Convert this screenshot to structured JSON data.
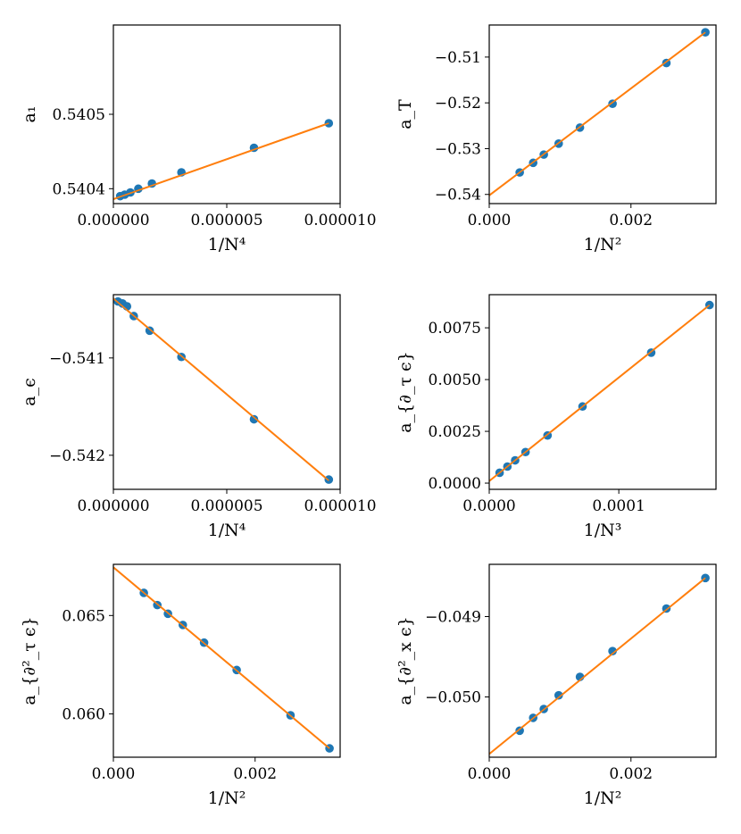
{
  "colors": {
    "points": "#1f77b4",
    "fit_line": "#ff7f0e",
    "axes": "#000000",
    "background": "#ffffff"
  },
  "chart_data": [
    {
      "type": "scatter",
      "xlabel": "1/N⁴",
      "ylabel": "a₁",
      "xlim": [
        0,
        1e-05
      ],
      "ylim": [
        0.54038,
        0.54062
      ],
      "xticks": [
        0,
        5e-06,
        1e-05
      ],
      "xtick_labels": [
        "0.000000",
        "0.000005",
        "0.000010"
      ],
      "yticks": [
        0.5404,
        0.5405
      ],
      "ytick_labels": [
        "0.5404",
        "0.5405"
      ],
      "points": {
        "x": [
          3e-07,
          5e-07,
          7.5e-07,
          1.1e-06,
          1.7e-06,
          3e-06,
          6.2e-06,
          9.5e-06
        ],
        "y": [
          0.54039,
          0.540392,
          0.540395,
          0.5404,
          0.540407,
          0.540422,
          0.540455,
          0.540488
        ]
      },
      "fit": {
        "x": [
          0,
          9.5e-06
        ],
        "y": [
          0.540386,
          0.540488
        ]
      },
      "grid": false,
      "legend": "none"
    },
    {
      "type": "scatter",
      "xlabel": "1/N²",
      "ylabel": "a_T",
      "xlim": [
        0,
        0.0032
      ],
      "ylim": [
        -0.542,
        -0.503
      ],
      "xticks": [
        0,
        0.002
      ],
      "xtick_labels": [
        "0.000",
        "0.002"
      ],
      "yticks": [
        -0.54,
        -0.53,
        -0.52,
        -0.51
      ],
      "ytick_labels": [
        "−0.54",
        "−0.53",
        "−0.52",
        "−0.51"
      ],
      "points": {
        "x": [
          0.00043,
          0.00062,
          0.00077,
          0.00098,
          0.00128,
          0.00174,
          0.0025,
          0.00305
        ],
        "y": [
          -0.5352,
          -0.5331,
          -0.5313,
          -0.5289,
          -0.5254,
          -0.5202,
          -0.5113,
          -0.5046
        ]
      },
      "fit": {
        "x": [
          0,
          0.00305
        ],
        "y": [
          -0.5402,
          -0.5046
        ]
      },
      "grid": false,
      "legend": "none"
    },
    {
      "type": "scatter",
      "xlabel": "1/N⁴",
      "ylabel": "a_ϵ",
      "xlim": [
        0,
        1e-05
      ],
      "ylim": [
        -0.54235,
        -0.54035
      ],
      "xticks": [
        0,
        5e-06,
        1e-05
      ],
      "xtick_labels": [
        "0.000000",
        "0.000005",
        "0.000010"
      ],
      "yticks": [
        -0.542,
        -0.541
      ],
      "ytick_labels": [
        "−0.542",
        "−0.541"
      ],
      "points": {
        "x": [
          2e-07,
          4e-07,
          6e-07,
          9e-07,
          1.6e-06,
          3e-06,
          6.2e-06,
          9.5e-06
        ],
        "y": [
          -0.54042,
          -0.54044,
          -0.54047,
          -0.54057,
          -0.54072,
          -0.54099,
          -0.54163,
          -0.54225
        ]
      },
      "fit": {
        "x": [
          0,
          9.5e-06
        ],
        "y": [
          -0.54039,
          -0.54226
        ]
      },
      "grid": false,
      "legend": "none"
    },
    {
      "type": "scatter",
      "xlabel": "1/N³",
      "ylabel": "a_{∂_τ ϵ}",
      "xlim": [
        0,
        0.000175
      ],
      "ylim": [
        -0.0003,
        0.0091
      ],
      "xticks": [
        0,
        0.0001
      ],
      "xtick_labels": [
        "0.0000",
        "0.0001"
      ],
      "yticks": [
        0,
        0.0025,
        0.005,
        0.0075
      ],
      "ytick_labels": [
        "0.0000",
        "0.0025",
        "0.0050",
        "0.0075"
      ],
      "points": {
        "x": [
          8e-06,
          1.4e-05,
          2e-05,
          2.8e-05,
          4.5e-05,
          7.2e-05,
          0.000125,
          0.00017
        ],
        "y": [
          0.0005,
          0.0008,
          0.0011,
          0.0015,
          0.0023,
          0.0037,
          0.0063,
          0.0086
        ]
      },
      "fit": {
        "x": [
          0,
          0.00017
        ],
        "y": [
          0.0001,
          0.0086
        ]
      },
      "grid": false,
      "legend": "none"
    },
    {
      "type": "scatter",
      "xlabel": "1/N²",
      "ylabel": "a_{∂²_τ ϵ}",
      "xlim": [
        0,
        0.0032
      ],
      "ylim": [
        0.0578,
        0.0676
      ],
      "xticks": [
        0,
        0.002
      ],
      "xtick_labels": [
        "0.000",
        "0.002"
      ],
      "yticks": [
        0.06,
        0.065
      ],
      "ytick_labels": [
        "0.060",
        "0.065"
      ],
      "points": {
        "x": [
          0.00043,
          0.00062,
          0.00077,
          0.00098,
          0.00128,
          0.00174,
          0.0025,
          0.00305
        ],
        "y": [
          0.06615,
          0.06553,
          0.06509,
          0.06452,
          0.06362,
          0.06223,
          0.05993,
          0.05825
        ]
      },
      "fit": {
        "x": [
          0,
          0.00305
        ],
        "y": [
          0.06745,
          0.05825
        ]
      },
      "grid": false,
      "legend": "none"
    },
    {
      "type": "scatter",
      "xlabel": "1/N²",
      "ylabel": "a_{∂²_x ϵ}",
      "xlim": [
        0,
        0.0032
      ],
      "ylim": [
        -0.05075,
        -0.04835
      ],
      "xticks": [
        0,
        0.002
      ],
      "xtick_labels": [
        "0.000",
        "0.002"
      ],
      "yticks": [
        -0.05,
        -0.049
      ],
      "ytick_labels": [
        "−0.050",
        "−0.049"
      ],
      "points": {
        "x": [
          0.00043,
          0.00062,
          0.00077,
          0.00098,
          0.00128,
          0.00174,
          0.0025,
          0.00305
        ],
        "y": [
          -0.05042,
          -0.05026,
          -0.05015,
          -0.04998,
          -0.04975,
          -0.04943,
          -0.0489,
          -0.04852
        ]
      },
      "fit": {
        "x": [
          0,
          0.00305
        ],
        "y": [
          -0.05071,
          -0.04852
        ]
      },
      "grid": false,
      "legend": "none"
    }
  ]
}
